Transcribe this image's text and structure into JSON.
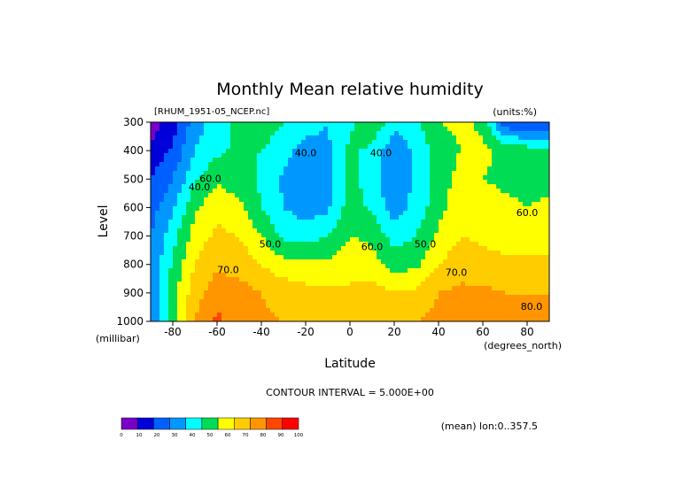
{
  "chart_data": {
    "type": "heatmap",
    "title": "Monthly Mean relative humidity",
    "file_label": "[RHUM_1951-05_NCEP.nc]",
    "units_label": "(units:%)",
    "xlabel": "Latitude",
    "ylabel": "Level",
    "x_unit_label": "(degrees_north)",
    "y_unit_label": "(millibar)",
    "xlim": [
      -90,
      90
    ],
    "ylim": [
      1000,
      300
    ],
    "x_ticks": [
      -80,
      -60,
      -40,
      -20,
      0,
      20,
      40,
      60,
      80
    ],
    "x_tick_labels": [
      "-80",
      "-60",
      "-40",
      "-20",
      "0",
      "20",
      "40",
      "60",
      "80"
    ],
    "y_ticks": [
      300,
      400,
      500,
      600,
      700,
      800,
      900,
      1000
    ],
    "y_tick_labels": [
      "300",
      "400",
      "500",
      "600",
      "700",
      "800",
      "900",
      "1000"
    ],
    "contour_interval_text": "CONTOUR INTERVAL = 5.000E+00",
    "averaging_text": "(mean) lon:0..357.5",
    "colorbar": {
      "ticks": [
        "0",
        "10",
        "20",
        "30",
        "40",
        "50",
        "60",
        "70",
        "80",
        "90",
        "100"
      ],
      "colors": [
        "#7a00c8",
        "#0000d8",
        "#0060ff",
        "#0098ff",
        "#00ffff",
        "#00dd55",
        "#ffff00",
        "#ffcc00",
        "#ff9600",
        "#ff4600",
        "#ff0000"
      ]
    },
    "contour_labels": [
      {
        "text": "40.0",
        "lat": -20,
        "level": 420
      },
      {
        "text": "40.0",
        "lat": 14,
        "level": 420
      },
      {
        "text": "40.0",
        "lat": -68,
        "level": 540
      },
      {
        "text": "60.0",
        "lat": -63,
        "level": 510
      },
      {
        "text": "50.0",
        "lat": -36,
        "level": 740
      },
      {
        "text": "60.0",
        "lat": 10,
        "level": 750
      },
      {
        "text": "50.0",
        "lat": 34,
        "level": 740
      },
      {
        "text": "70.0",
        "lat": -55,
        "level": 830
      },
      {
        "text": "70.0",
        "lat": 48,
        "level": 840
      },
      {
        "text": "60.0",
        "lat": 80,
        "level": 630
      },
      {
        "text": "80.0",
        "lat": 82,
        "level": 960
      }
    ],
    "field": {
      "lat": [
        -90,
        -80,
        -70,
        -60,
        -50,
        -40,
        -30,
        -20,
        -10,
        0,
        10,
        20,
        30,
        40,
        50,
        60,
        70,
        80,
        90
      ],
      "levels": [
        300,
        400,
        500,
        600,
        700,
        800,
        900,
        1000
      ],
      "values": [
        [
          4,
          15,
          35,
          45,
          54,
          56,
          50,
          44,
          40,
          48,
          58,
          44,
          48,
          60,
          62,
          58,
          22,
          20,
          18
        ],
        [
          12,
          22,
          40,
          48,
          52,
          50,
          44,
          36,
          38,
          52,
          48,
          32,
          42,
          56,
          60,
          62,
          58,
          55,
          52
        ],
        [
          20,
          30,
          48,
          58,
          55,
          48,
          38,
          32,
          36,
          52,
          46,
          30,
          42,
          55,
          63,
          60,
          58,
          58,
          56
        ],
        [
          25,
          38,
          58,
          68,
          62,
          50,
          40,
          35,
          38,
          55,
          48,
          35,
          44,
          56,
          68,
          64,
          62,
          60,
          62
        ],
        [
          30,
          46,
          65,
          72,
          70,
          60,
          48,
          46,
          50,
          60,
          58,
          45,
          50,
          62,
          70,
          68,
          66,
          64,
          66
        ],
        [
          30,
          52,
          70,
          78,
          76,
          70,
          64,
          62,
          62,
          66,
          64,
          56,
          58,
          70,
          76,
          74,
          72,
          72,
          72
        ],
        [
          30,
          55,
          76,
          86,
          84,
          80,
          76,
          74,
          72,
          72,
          74,
          70,
          72,
          80,
          82,
          82,
          80,
          80,
          80
        ],
        [
          30,
          58,
          80,
          92,
          86,
          82,
          80,
          76,
          74,
          74,
          78,
          78,
          80,
          84,
          84,
          90,
          86,
          84,
          84
        ]
      ]
    }
  }
}
